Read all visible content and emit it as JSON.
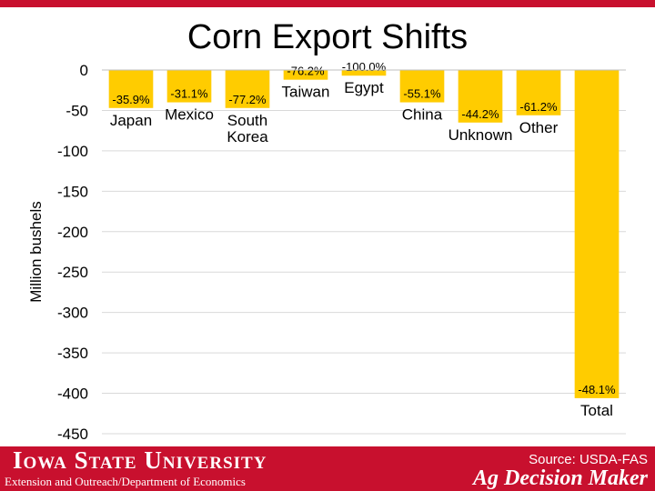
{
  "slide": {
    "title": "Corn Export Shifts"
  },
  "footer": {
    "university": "Iowa State University",
    "department": "Extension and Outreach/Department of Economics",
    "source": "Source: USDA-FAS",
    "brand": "Ag Decision Maker"
  },
  "colors": {
    "bar": "#ffcc00",
    "footer": "#c8102e",
    "grid": "#d9d9d9"
  },
  "chart_data": {
    "type": "bar",
    "title": "",
    "xlabel": "",
    "ylabel": "Million bushels",
    "ylim": [
      -450,
      0
    ],
    "yticks": [
      0,
      -50,
      -100,
      -150,
      -200,
      -250,
      -300,
      -350,
      -400,
      -450
    ],
    "grid": true,
    "categories": [
      [
        "Japan"
      ],
      [
        "Mexico"
      ],
      [
        "South",
        "Korea"
      ],
      [
        "Taiwan"
      ],
      [
        "Egypt"
      ],
      [
        "China"
      ],
      [
        "Unknown"
      ],
      [
        "Other"
      ],
      [
        "Total"
      ]
    ],
    "values": [
      -47,
      -40,
      -47,
      -12,
      -7,
      -40,
      -65,
      -56,
      -406
    ],
    "data_labels": [
      "-35.9%",
      "-31.1%",
      "-77.2%",
      "-76.2%",
      "-100.0%",
      "-55.1%",
      "-44.2%",
      "-61.2%",
      "-48.1%"
    ]
  }
}
